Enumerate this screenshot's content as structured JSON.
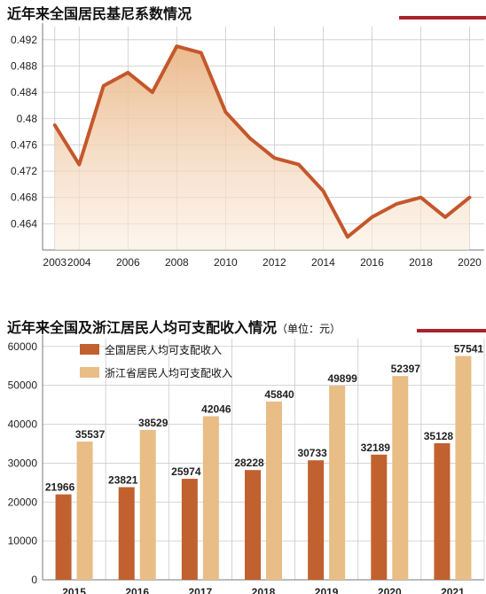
{
  "top": {
    "title": "近年来全国居民基尼系数情况"
  },
  "bottom": {
    "title": "近年来全国及浙江居民人均可支配收入情况",
    "unit": "（单位：元）"
  },
  "colors": {
    "accent": "#a8232b",
    "line": "#c4572b",
    "bar_national": "#c0612f",
    "bar_zhejiang": "#e8bd86"
  },
  "chart_data": [
    {
      "type": "area",
      "title": "近年来全国居民基尼系数情况",
      "x": [
        2003,
        2004,
        2005,
        2006,
        2007,
        2008,
        2009,
        2010,
        2011,
        2012,
        2013,
        2014,
        2015,
        2016,
        2017,
        2018,
        2019,
        2020
      ],
      "values": [
        0.479,
        0.473,
        0.485,
        0.487,
        0.484,
        0.491,
        0.49,
        0.481,
        0.477,
        0.474,
        0.473,
        0.469,
        0.462,
        0.465,
        0.467,
        0.468,
        0.465,
        0.468
      ],
      "xticks": [
        "2003",
        "2004",
        "2006",
        "2008",
        "2010",
        "2012",
        "2014",
        "2016",
        "2018",
        "2020"
      ],
      "yticks": [
        "0.464",
        "0.468",
        "0.472",
        "0.476",
        "0.48",
        "0.484",
        "0.488",
        "0.492"
      ],
      "ylim": [
        0.46,
        0.494
      ],
      "grid": true
    },
    {
      "type": "bar",
      "title": "近年来全国及浙江居民人均可支配收入情况",
      "categories": [
        "2015",
        "2016",
        "2017",
        "2018",
        "2019",
        "2020",
        "2021"
      ],
      "series": [
        {
          "name": "全国居民人均可支配收入",
          "values": [
            21966,
            23821,
            25974,
            28228,
            30733,
            32189,
            35128
          ]
        },
        {
          "name": "浙江省居民人均可支配收入",
          "values": [
            35537,
            38529,
            42046,
            45840,
            49899,
            52397,
            57541
          ]
        }
      ],
      "yticks": [
        "0",
        "10000",
        "20000",
        "30000",
        "40000",
        "50000",
        "60000"
      ],
      "ylim": [
        0,
        62000
      ],
      "legend": "top-left",
      "grid": true
    }
  ]
}
